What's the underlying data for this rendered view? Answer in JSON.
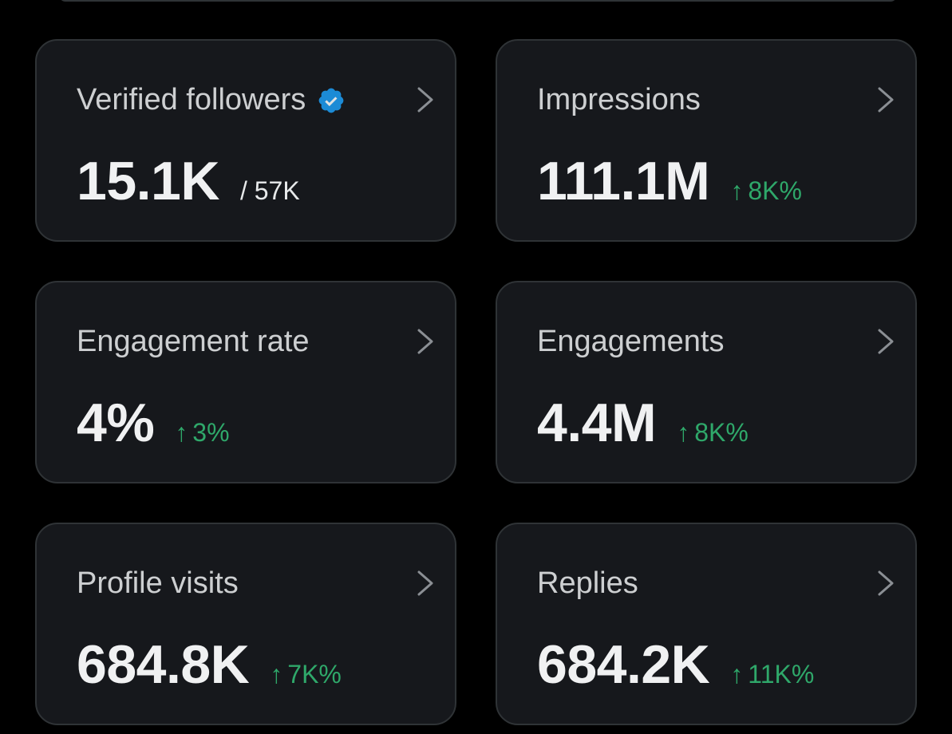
{
  "colors": {
    "background": "#000000",
    "card_background": "#16181c",
    "card_border": "#2f3336",
    "text": "#e7e9ea",
    "positive": "#2fa86a",
    "verified": "#1d9bf0"
  },
  "cards": [
    {
      "title": "Verified followers",
      "value": "15.1K",
      "sub_total": "/ 57K",
      "icon": "verified-badge-icon"
    },
    {
      "title": "Impressions",
      "value": "111.1M",
      "change": "8K%",
      "trend": "up"
    },
    {
      "title": "Engagement rate",
      "value": "4%",
      "change": "3%",
      "trend": "up"
    },
    {
      "title": "Engagements",
      "value": "4.4M",
      "change": "8K%",
      "trend": "up"
    },
    {
      "title": "Profile visits",
      "value": "684.8K",
      "change": "7K%",
      "trend": "up"
    },
    {
      "title": "Replies",
      "value": "684.2K",
      "change": "11K%",
      "trend": "up"
    }
  ]
}
